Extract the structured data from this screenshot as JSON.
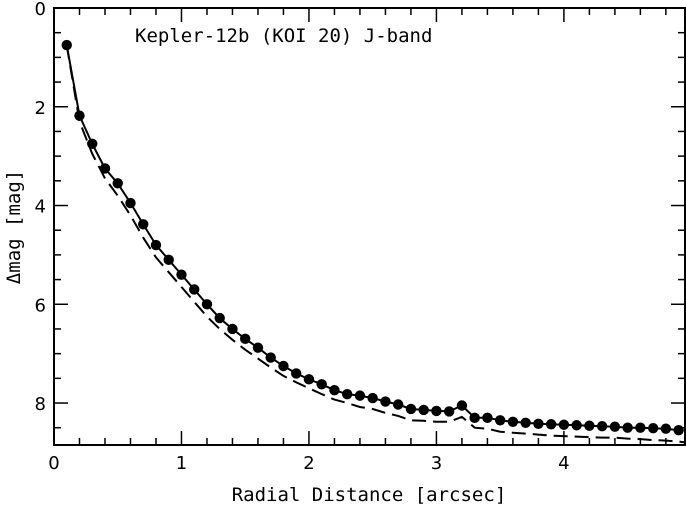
{
  "chart_data": {
    "type": "line",
    "title": "Kepler-12b (KOI 20) J-band",
    "xlabel": "Radial Distance [arcsec]",
    "ylabel": "Δmag [mag]",
    "xlim": [
      0,
      4.95
    ],
    "ylim": [
      8.85,
      0
    ],
    "y_inverted": true,
    "grid": false,
    "x_ticks": [
      0,
      1,
      2,
      3,
      4
    ],
    "y_ticks": [
      0,
      2,
      4,
      6,
      8
    ],
    "series": [
      {
        "style": "solid-with-circles",
        "x": [
          0.1,
          0.2,
          0.3,
          0.4,
          0.5,
          0.6,
          0.7,
          0.8,
          0.9,
          1.0,
          1.1,
          1.2,
          1.3,
          1.4,
          1.5,
          1.6,
          1.7,
          1.8,
          1.9,
          2.0,
          2.1,
          2.2,
          2.3,
          2.4,
          2.5,
          2.6,
          2.7,
          2.8,
          2.9,
          3.0,
          3.1,
          3.2,
          3.3,
          3.4,
          3.5,
          3.6,
          3.7,
          3.8,
          3.9,
          4.0,
          4.1,
          4.2,
          4.3,
          4.4,
          4.5,
          4.6,
          4.7,
          4.8,
          4.9
        ],
        "y": [
          0.75,
          2.18,
          2.75,
          3.25,
          3.55,
          3.95,
          4.38,
          4.8,
          5.1,
          5.4,
          5.7,
          6.0,
          6.28,
          6.5,
          6.7,
          6.88,
          7.08,
          7.25,
          7.4,
          7.52,
          7.62,
          7.74,
          7.82,
          7.85,
          7.9,
          7.97,
          8.03,
          8.12,
          8.14,
          8.16,
          8.17,
          8.05,
          8.3,
          8.3,
          8.35,
          8.38,
          8.4,
          8.42,
          8.43,
          8.44,
          8.45,
          8.46,
          8.47,
          8.48,
          8.5,
          8.5,
          8.51,
          8.52,
          8.55
        ]
      },
      {
        "style": "dashed",
        "x": [
          0.1,
          0.2,
          0.3,
          0.4,
          0.5,
          0.6,
          0.7,
          0.8,
          0.9,
          1.0,
          1.1,
          1.2,
          1.3,
          1.4,
          1.5,
          1.6,
          1.7,
          1.8,
          1.9,
          2.0,
          2.1,
          2.2,
          2.3,
          2.4,
          2.5,
          2.6,
          2.7,
          2.8,
          2.9,
          3.0,
          3.1,
          3.2,
          3.3,
          3.4,
          3.5,
          3.6,
          3.7,
          3.8,
          3.9,
          4.0,
          4.1,
          4.2,
          4.3,
          4.4,
          4.5,
          4.6,
          4.7,
          4.8,
          4.9,
          4.95
        ],
        "y": [
          0.75,
          2.3,
          2.95,
          3.45,
          3.8,
          4.2,
          4.65,
          5.05,
          5.35,
          5.65,
          5.95,
          6.25,
          6.5,
          6.72,
          6.92,
          7.1,
          7.28,
          7.45,
          7.58,
          7.7,
          7.82,
          7.93,
          8.0,
          8.08,
          8.12,
          8.2,
          8.26,
          8.35,
          8.36,
          8.38,
          8.38,
          8.28,
          8.5,
          8.52,
          8.58,
          8.6,
          8.62,
          8.64,
          8.66,
          8.67,
          8.68,
          8.69,
          8.7,
          8.7,
          8.72,
          8.73,
          8.75,
          8.76,
          8.78,
          8.8
        ]
      }
    ]
  }
}
